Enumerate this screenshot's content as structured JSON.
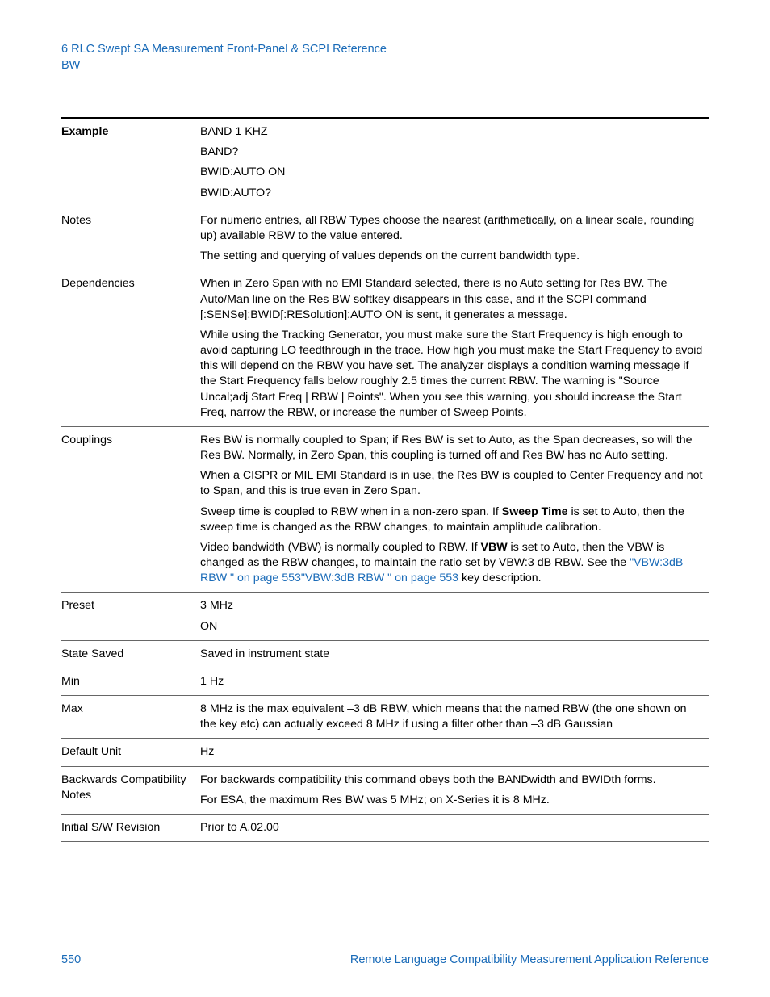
{
  "colors": {
    "link": "#1a6bb8",
    "text": "#000000",
    "border": "#666666",
    "topBorder": "#000000",
    "background": "#ffffff"
  },
  "fonts": {
    "body_pt": 14.2,
    "header_pt": 14.5
  },
  "header": {
    "line1": "6  RLC Swept SA Measurement Front-Panel & SCPI Reference",
    "line2": "BW"
  },
  "rows": {
    "example": {
      "label": "Example",
      "p1": "BAND 1 KHZ",
      "p2": "BAND?",
      "p3": "BWID:AUTO ON",
      "p4": "BWID:AUTO?"
    },
    "notes": {
      "label": "Notes",
      "p1": "For numeric entries, all RBW Types choose the nearest (arithmetically, on a linear scale, rounding up) available RBW to the value entered.",
      "p2": "The setting and querying of values depends on the current bandwidth type."
    },
    "dependencies": {
      "label": "Dependencies",
      "p1": "When in Zero Span with no EMI Standard selected, there is no Auto setting for Res BW. The Auto/Man line on the Res BW softkey disappears in this case, and if the SCPI command [:SENSe]:BWID[:RESolution]:AUTO ON is sent, it generates a message.",
      "p2": "While using the Tracking Generator, you must make sure the Start Frequency is high enough to avoid capturing LO feedthrough in the trace.  How high you must make the Start Frequency to avoid this will depend on the RBW you have set.  The analyzer displays a condition warning message if the Start Frequency falls below roughly 2.5 times the current RBW.  The warning is \"Source Uncal;adj Start Freq | RBW | Points\". When you see this warning, you should increase the Start Freq, narrow the RBW, or increase the number of Sweep Points."
    },
    "couplings": {
      "label": "Couplings",
      "p1": "Res BW is normally coupled to Span; if Res BW is set to Auto, as the Span decreases, so will the Res BW.   Normally, in Zero Span, this coupling is turned off and Res BW has no Auto setting.",
      "p2": "When a CISPR or MIL EMI Standard is in use, the Res BW is coupled to Center Frequency and not to Span, and this is true even in Zero Span.",
      "p3_a": "Sweep time is coupled to RBW when in a non-zero span. If ",
      "p3_b": "Sweep Time",
      "p3_c": " is set to Auto, then the sweep time is changed as the RBW changes, to maintain amplitude calibration.",
      "p4_a": "Video bandwidth (VBW) is normally coupled to RBW. If ",
      "p4_b": "VBW",
      "p4_c": " is set to Auto, then the VBW is changed as the RBW changes, to maintain the ratio set by VBW:3 dB RBW.   See the ",
      "p4_link1": "\"VBW:3dB RBW \" on page 553",
      "p4_link2": "\"VBW:3dB RBW \" on page 553",
      "p4_end": " key description."
    },
    "preset": {
      "label": "Preset",
      "p1": "3 MHz",
      "p2": "ON"
    },
    "stateSaved": {
      "label": "State Saved",
      "p1": "Saved in instrument state"
    },
    "min": {
      "label": "Min",
      "p1": "1 Hz"
    },
    "max": {
      "label": "Max",
      "p1": "8 MHz is the max equivalent –3 dB RBW, which means that the named RBW (the one shown on the key etc) can actually exceed 8 MHz if using a filter other than –3 dB Gaussian"
    },
    "defaultUnit": {
      "label": "Default Unit",
      "p1": "Hz"
    },
    "backCompat": {
      "label": "Backwards Compatibility Notes",
      "p1": "For backwards compatibility this command obeys both the BANDwidth and BWIDth forms.",
      "p2": "For ESA, the maximum Res BW was 5 MHz; on X-Series it is 8 MHz."
    },
    "initialRev": {
      "label": "Initial S/W Revision",
      "p1": "Prior to A.02.00"
    }
  },
  "footer": {
    "pageNumber": "550",
    "docTitle": "Remote Language Compatibility Measurement Application Reference"
  }
}
